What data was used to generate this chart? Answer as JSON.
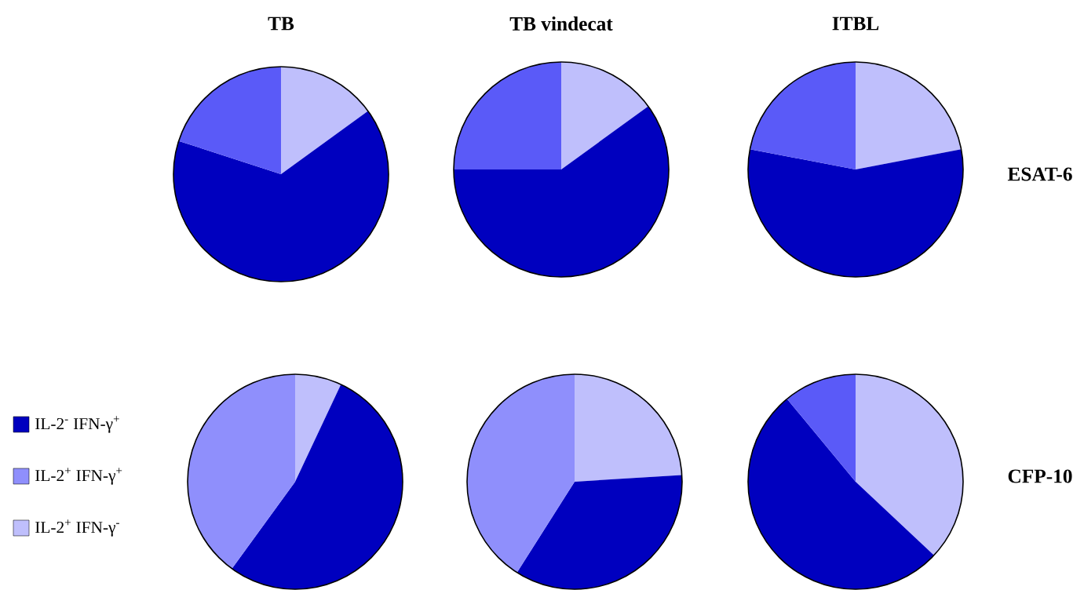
{
  "chart_data": [
    {
      "type": "pie",
      "title": "TB",
      "categories": [
        null,
        null,
        null
      ],
      "values": [
        15,
        65,
        20
      ],
      "colors": [
        "#bfbffc",
        "#0000bf",
        "#5a5af8"
      ]
    },
    {
      "type": "pie",
      "title": "TB vindecat",
      "categories": [
        null,
        null,
        null
      ],
      "values": [
        15,
        60,
        25
      ],
      "colors": [
        "#bfbffc",
        "#0000bf",
        "#5a5af8"
      ]
    },
    {
      "type": "pie",
      "title": "ITBL",
      "categories": [
        null,
        null,
        null
      ],
      "values": [
        22,
        56,
        22
      ],
      "colors": [
        "#bfbffc",
        "#0000bf",
        "#5a5af8"
      ],
      "annotations": [
        "ESAT-6"
      ]
    },
    {
      "type": "pie",
      "categories": [
        "IL-2$^{+}$ IFN-γ$^{-}$",
        "IL-2$^{-}$ IFN-γ$^{+}$",
        "IL-2$^{+}$ IFN-γ$^{+}$"
      ],
      "values": [
        7,
        53,
        40
      ],
      "colors": [
        "#bfbffc",
        "#0000bf",
        "#8f8ffc"
      ],
      "legend": "left"
    },
    {
      "type": "pie",
      "categories": [
        null,
        null,
        null
      ],
      "values": [
        24,
        35,
        41
      ],
      "colors": [
        "#bfbffc",
        "#0000bf",
        "#8f8ffc"
      ]
    },
    {
      "type": "pie",
      "categories": [
        null,
        null,
        null
      ],
      "values": [
        37,
        52,
        11
      ],
      "colors": [
        "#bfbffc",
        "#0000bf",
        "#5a5af8"
      ],
      "annotations": [
        "CFP-10"
      ]
    }
  ]
}
